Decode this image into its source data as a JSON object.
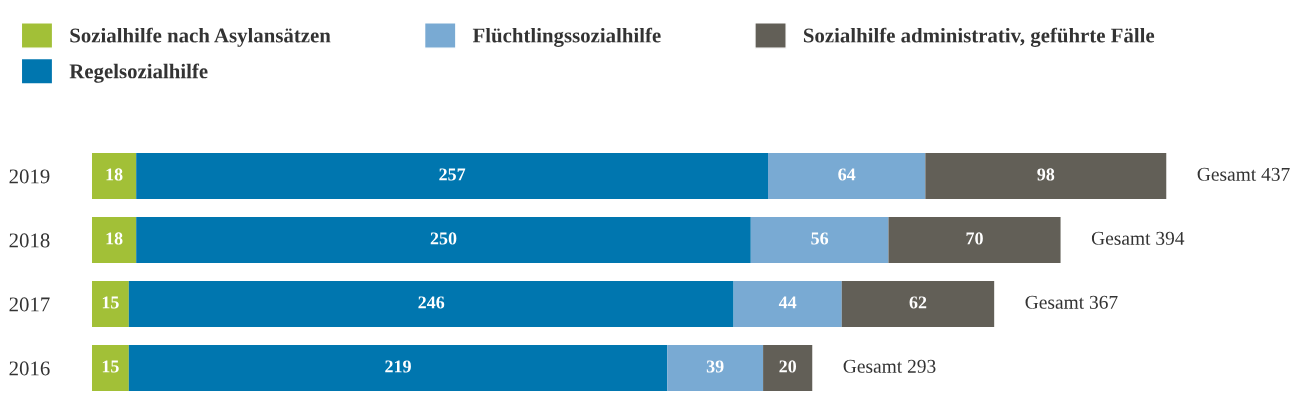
{
  "chart_data": {
    "type": "bar",
    "orientation": "horizontal",
    "stacked": true,
    "categories": [
      "2019",
      "2018",
      "2017",
      "2016"
    ],
    "series": [
      {
        "name": "Sozialhilfe nach Asylansätzen",
        "color": "#a2c037",
        "values": [
          18,
          18,
          15,
          15
        ]
      },
      {
        "name": "Regelsozialhilfe",
        "color": "#0076af",
        "values": [
          257,
          250,
          246,
          219
        ]
      },
      {
        "name": "Flüchtlingssozialhilfe",
        "color": "#79aad3",
        "values": [
          64,
          56,
          44,
          39
        ]
      },
      {
        "name": "Sozialhilfe administrativ, geführte Fälle",
        "color": "#625f57",
        "values": [
          98,
          70,
          62,
          20
        ]
      }
    ],
    "data_labels": true,
    "totals": [
      "Gesamt 437",
      "Gesamt 394",
      "Gesamt 367",
      "Gesamt 293"
    ],
    "legend": "top left",
    "grid": false,
    "tick_labels": "y"
  }
}
